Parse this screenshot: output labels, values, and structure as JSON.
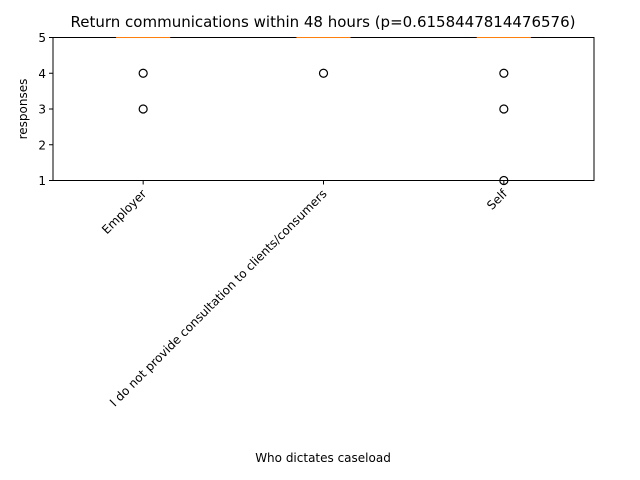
{
  "chart_data": {
    "type": "box",
    "title": "Return communications within 48 hours (p=0.6158447814476576)",
    "xlabel": "Who dictates caseload",
    "ylabel": "responses",
    "ylim": [
      1,
      5
    ],
    "yticks": [
      1,
      2,
      3,
      4,
      5
    ],
    "grid": false,
    "categories": [
      "Employer",
      "I do not provide consultation to clients/consumers",
      "Self"
    ],
    "boxes": [
      {
        "category": "Employer",
        "median": 5,
        "q1": 5,
        "q3": 5,
        "whisker_low": 5,
        "whisker_high": 5,
        "outliers": [
          4,
          3
        ]
      },
      {
        "category": "I do not provide consultation to clients/consumers",
        "median": 5,
        "q1": 5,
        "q3": 5,
        "whisker_low": 5,
        "whisker_high": 5,
        "outliers": [
          4
        ]
      },
      {
        "category": "Self",
        "median": 5,
        "q1": 5,
        "q3": 5,
        "whisker_low": 5,
        "whisker_high": 5,
        "outliers": [
          4,
          3,
          1
        ]
      }
    ],
    "colors": {
      "box": "#000000",
      "median": "#ff7f0e",
      "background": "#ffffff"
    }
  }
}
